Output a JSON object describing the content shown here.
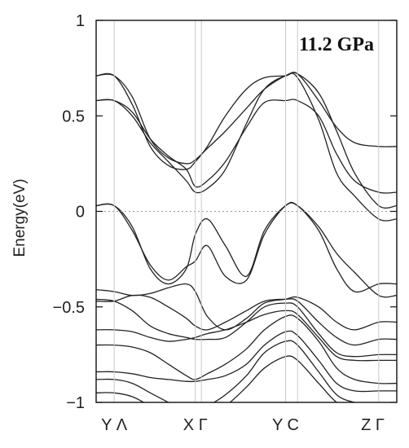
{
  "chart_data": {
    "type": "line",
    "title": "",
    "annotation": "11.2 GPa",
    "ylabel": "Energy(eV)",
    "xlabel": "",
    "ylim": [
      -1,
      1
    ],
    "yticks": [
      {
        "value": 1,
        "label": "1"
      },
      {
        "value": 0.5,
        "label": "0.5"
      },
      {
        "value": 0,
        "label": "0"
      },
      {
        "value": -0.5,
        "label": "−0.5"
      },
      {
        "value": -1,
        "label": "−1"
      }
    ],
    "xticks": [
      {
        "position": 0.06,
        "label": "Y Λ"
      },
      {
        "position": 0.33,
        "label": "X Γ"
      },
      {
        "position": 0.63,
        "label": "Y C"
      },
      {
        "position": 0.92,
        "label": "Z Γ"
      }
    ],
    "k_points": [
      0,
      0.06,
      0.33,
      0.35,
      0.63,
      0.67,
      0.94,
      1.0
    ],
    "reference_line": {
      "y": 0,
      "style": "dotted"
    },
    "legend": "none",
    "grid": false,
    "series": [
      {
        "x": [
          0,
          0.06,
          0.12,
          0.18,
          0.24,
          0.3,
          0.33,
          0.37,
          0.43,
          0.5,
          0.56,
          0.63,
          0.67,
          0.74,
          0.8,
          0.86,
          0.94,
          1.0
        ],
        "y": [
          0.71,
          0.71,
          0.56,
          0.34,
          0.24,
          0.22,
          0.26,
          0.34,
          0.5,
          0.64,
          0.7,
          0.71,
          0.72,
          0.58,
          0.44,
          0.36,
          0.34,
          0.34
        ]
      },
      {
        "x": [
          0,
          0.06,
          0.12,
          0.18,
          0.24,
          0.3,
          0.33,
          0.37,
          0.43,
          0.5,
          0.56,
          0.63,
          0.67,
          0.74,
          0.8,
          0.86,
          0.94,
          1.0
        ],
        "y": [
          0.58,
          0.58,
          0.52,
          0.38,
          0.29,
          0.22,
          0.13,
          0.16,
          0.26,
          0.44,
          0.57,
          0.58,
          0.58,
          0.5,
          0.3,
          0.16,
          0.1,
          0.1
        ]
      },
      {
        "x": [
          0,
          0.06,
          0.12,
          0.18,
          0.24,
          0.3,
          0.33,
          0.37,
          0.43,
          0.5,
          0.56,
          0.63,
          0.67,
          0.74,
          0.8,
          0.86,
          0.94,
          1.0
        ],
        "y": [
          0.58,
          0.58,
          0.5,
          0.36,
          0.26,
          0.16,
          0.1,
          0.12,
          0.22,
          0.46,
          0.64,
          0.71,
          0.7,
          0.48,
          0.2,
          0.08,
          -0.04,
          -0.04
        ]
      },
      {
        "x": [
          0,
          0.06,
          0.12,
          0.18,
          0.24,
          0.3,
          0.33,
          0.37,
          0.43,
          0.5,
          0.56,
          0.63,
          0.67,
          0.74,
          0.8,
          0.86,
          0.94,
          1.0
        ],
        "y": [
          0.71,
          0.71,
          0.6,
          0.38,
          0.28,
          0.25,
          0.27,
          0.33,
          0.42,
          0.54,
          0.64,
          0.71,
          0.72,
          0.62,
          0.42,
          0.2,
          0.03,
          0.03
        ]
      },
      {
        "x": [
          0,
          0.06,
          0.12,
          0.18,
          0.24,
          0.3,
          0.33,
          0.37,
          0.43,
          0.5,
          0.56,
          0.63,
          0.67,
          0.74,
          0.8,
          0.86,
          0.94,
          1.0
        ],
        "y": [
          0.03,
          0.03,
          -0.08,
          -0.3,
          -0.38,
          -0.3,
          -0.12,
          -0.04,
          -0.18,
          -0.34,
          -0.1,
          0.03,
          0.03,
          -0.08,
          -0.22,
          -0.32,
          -0.44,
          -0.44
        ]
      },
      {
        "x": [
          0,
          0.06,
          0.12,
          0.18,
          0.24,
          0.3,
          0.33,
          0.37,
          0.43,
          0.5,
          0.56,
          0.63,
          0.67,
          0.74,
          0.8,
          0.86,
          0.94,
          1.0
        ],
        "y": [
          0.03,
          0.03,
          -0.1,
          -0.28,
          -0.36,
          -0.29,
          -0.26,
          -0.18,
          -0.34,
          -0.36,
          -0.12,
          0.03,
          0.03,
          -0.1,
          -0.3,
          -0.42,
          -0.38,
          -0.38
        ]
      },
      {
        "x": [
          0,
          0.06,
          0.12,
          0.18,
          0.24,
          0.3,
          0.33,
          0.37,
          0.43,
          0.5,
          0.56,
          0.63,
          0.67,
          0.74,
          0.8,
          0.86,
          0.94,
          1.0
        ],
        "y": [
          -0.41,
          -0.42,
          -0.44,
          -0.43,
          -0.4,
          -0.38,
          -0.42,
          -0.55,
          -0.62,
          -0.56,
          -0.48,
          -0.46,
          -0.45,
          -0.5,
          -0.58,
          -0.62,
          -0.58,
          -0.58
        ]
      },
      {
        "x": [
          0,
          0.06,
          0.12,
          0.18,
          0.24,
          0.3,
          0.33,
          0.37,
          0.43,
          0.5,
          0.56,
          0.63,
          0.67,
          0.74,
          0.8,
          0.86,
          0.94,
          1.0
        ],
        "y": [
          -0.47,
          -0.47,
          -0.44,
          -0.45,
          -0.5,
          -0.56,
          -0.6,
          -0.62,
          -0.58,
          -0.52,
          -0.47,
          -0.46,
          -0.47,
          -0.58,
          -0.66,
          -0.7,
          -0.67,
          -0.67
        ]
      },
      {
        "x": [
          0,
          0.06,
          0.12,
          0.18,
          0.24,
          0.3,
          0.33,
          0.37,
          0.43,
          0.5,
          0.56,
          0.63,
          0.67,
          0.74,
          0.8,
          0.86,
          0.94,
          1.0
        ],
        "y": [
          -0.46,
          -0.47,
          -0.52,
          -0.6,
          -0.64,
          -0.66,
          -0.67,
          -0.67,
          -0.66,
          -0.58,
          -0.5,
          -0.48,
          -0.5,
          -0.64,
          -0.74,
          -0.76,
          -0.75,
          -0.75
        ]
      },
      {
        "x": [
          0,
          0.06,
          0.12,
          0.18,
          0.24,
          0.3,
          0.33,
          0.37,
          0.43,
          0.5,
          0.56,
          0.63,
          0.67,
          0.74,
          0.8,
          0.86,
          0.94,
          1.0
        ],
        "y": [
          -0.62,
          -0.62,
          -0.63,
          -0.66,
          -0.68,
          -0.67,
          -0.66,
          -0.64,
          -0.62,
          -0.58,
          -0.54,
          -0.52,
          -0.54,
          -0.66,
          -0.76,
          -0.78,
          -0.78,
          -0.78
        ]
      },
      {
        "x": [
          0,
          0.06,
          0.12,
          0.18,
          0.24,
          0.3,
          0.33,
          0.37,
          0.43,
          0.5,
          0.56,
          0.63,
          0.67,
          0.74,
          0.8,
          0.86,
          0.94,
          1.0
        ],
        "y": [
          -0.7,
          -0.7,
          -0.71,
          -0.74,
          -0.8,
          -0.86,
          -0.88,
          -0.85,
          -0.8,
          -0.72,
          -0.62,
          -0.55,
          -0.56,
          -0.68,
          -0.82,
          -0.88,
          -0.9,
          -0.9
        ]
      },
      {
        "x": [
          0,
          0.06,
          0.12,
          0.18,
          0.24,
          0.3,
          0.33,
          0.37,
          0.43,
          0.5,
          0.56,
          0.63,
          0.67,
          0.74,
          0.8,
          0.86,
          0.94,
          1.0
        ],
        "y": [
          -0.84,
          -0.84,
          -0.85,
          -0.87,
          -0.88,
          -0.89,
          -0.89,
          -0.88,
          -0.86,
          -0.8,
          -0.7,
          -0.63,
          -0.65,
          -0.78,
          -0.9,
          -0.94,
          -0.94,
          -0.94
        ]
      },
      {
        "x": [
          0,
          0.06,
          0.12,
          0.18,
          0.24,
          0.3,
          0.33,
          0.37,
          0.43,
          0.5,
          0.56,
          0.63,
          0.67,
          0.74,
          0.8,
          0.86,
          0.94,
          1.0
        ],
        "y": [
          -0.88,
          -0.88,
          -0.9,
          -0.95,
          -1.0,
          -1.05,
          -1.05,
          -1.02,
          -0.96,
          -0.86,
          -0.74,
          -0.68,
          -0.7,
          -0.84,
          -0.96,
          -1.0,
          -1.02,
          -1.02
        ]
      },
      {
        "x": [
          0,
          0.06,
          0.12,
          0.18,
          0.24,
          0.3,
          0.33,
          0.37,
          0.43,
          0.5,
          0.56,
          0.63,
          0.67,
          0.74,
          0.8,
          0.86,
          0.94,
          1.0
        ],
        "y": [
          -0.95,
          -0.95,
          -0.97,
          -1.02,
          -1.08,
          -1.1,
          -1.1,
          -1.08,
          -1.02,
          -0.92,
          -0.82,
          -0.76,
          -0.78,
          -0.9,
          -1.0,
          -1.04,
          -1.05,
          -1.05
        ]
      }
    ]
  }
}
